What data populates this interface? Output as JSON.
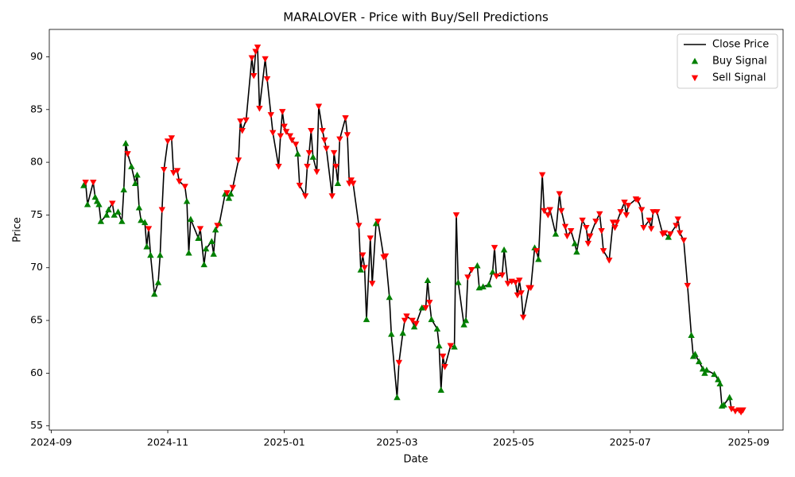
{
  "chart_data": {
    "type": "line",
    "title": "MARALOVER - Price with Buy/Sell Predictions",
    "x_label": "Date",
    "y_label": "Price",
    "xlim": [
      "2024-08-31",
      "2025-09-19"
    ],
    "ylim": [
      54.6,
      92.6
    ],
    "xticks": [
      {
        "value": "2024-09-01",
        "label": "2024-09"
      },
      {
        "value": "2024-11-01",
        "label": "2024-11"
      },
      {
        "value": "2025-01-01",
        "label": "2025-01"
      },
      {
        "value": "2025-03-01",
        "label": "2025-03"
      },
      {
        "value": "2025-05-01",
        "label": "2025-05"
      },
      {
        "value": "2025-07-01",
        "label": "2025-07"
      },
      {
        "value": "2025-09-01",
        "label": "2025-09"
      }
    ],
    "yticks": [
      55,
      60,
      65,
      70,
      75,
      80,
      85,
      90
    ],
    "legend": "upper right",
    "series": [
      {
        "name": "Close Price",
        "type": "line",
        "color": "#000000",
        "x": [
          "2024-09-18",
          "2024-09-19",
          "2024-09-20",
          "2024-09-23",
          "2024-09-24",
          "2024-09-25",
          "2024-09-26",
          "2024-09-27",
          "2024-09-30",
          "2024-10-01",
          "2024-10-03",
          "2024-10-04",
          "2024-10-06",
          "2024-10-08",
          "2024-10-09",
          "2024-10-10",
          "2024-10-11",
          "2024-10-13",
          "2024-10-15",
          "2024-10-16",
          "2024-10-17",
          "2024-10-18",
          "2024-10-20",
          "2024-10-21",
          "2024-10-22",
          "2024-10-23",
          "2024-10-25",
          "2024-10-27",
          "2024-10-28",
          "2024-10-29",
          "2024-10-30",
          "2024-11-01",
          "2024-11-03",
          "2024-11-04",
          "2024-11-06",
          "2024-11-07",
          "2024-11-10",
          "2024-11-11",
          "2024-11-12",
          "2024-11-13",
          "2024-11-17",
          "2024-11-18",
          "2024-11-20",
          "2024-11-21",
          "2024-11-24",
          "2024-11-25",
          "2024-11-26",
          "2024-11-27",
          "2024-11-28",
          "2024-12-01",
          "2024-12-02",
          "2024-12-03",
          "2024-12-04",
          "2024-12-05",
          "2024-12-08",
          "2024-12-09",
          "2024-12-10",
          "2024-12-12",
          "2024-12-15",
          "2024-12-16",
          "2024-12-17",
          "2024-12-18",
          "2024-12-19",
          "2024-12-22",
          "2024-12-23",
          "2024-12-25",
          "2024-12-26",
          "2024-12-29",
          "2024-12-30",
          "2024-12-31",
          "2025-01-01",
          "2025-01-02",
          "2025-01-04",
          "2025-01-05",
          "2025-01-07",
          "2025-01-08",
          "2025-01-09",
          "2025-01-12",
          "2025-01-13",
          "2025-01-14",
          "2025-01-15",
          "2025-01-16",
          "2025-01-18",
          "2025-01-19",
          "2025-01-21",
          "2025-01-22",
          "2025-01-23",
          "2025-01-26",
          "2025-01-27",
          "2025-01-28",
          "2025-01-29",
          "2025-01-30",
          "2025-02-02",
          "2025-02-03",
          "2025-02-04",
          "2025-02-05",
          "2025-02-06",
          "2025-02-09",
          "2025-02-10",
          "2025-02-11",
          "2025-02-12",
          "2025-02-13",
          "2025-02-15",
          "2025-02-16",
          "2025-02-18",
          "2025-02-19",
          "2025-02-22",
          "2025-02-23",
          "2025-02-25",
          "2025-02-26",
          "2025-03-01",
          "2025-03-02",
          "2025-03-04",
          "2025-03-05",
          "2025-03-06",
          "2025-03-09",
          "2025-03-10",
          "2025-03-11",
          "2025-03-14",
          "2025-03-16",
          "2025-03-17",
          "2025-03-18",
          "2025-03-19",
          "2025-03-22",
          "2025-03-23",
          "2025-03-24",
          "2025-03-25",
          "2025-03-26",
          "2025-03-29",
          "2025-03-31",
          "2025-04-01",
          "2025-04-02",
          "2025-04-05",
          "2025-04-06",
          "2025-04-07",
          "2025-04-09",
          "2025-04-12",
          "2025-04-13",
          "2025-04-15",
          "2025-04-18",
          "2025-04-20",
          "2025-04-21",
          "2025-04-22",
          "2025-04-25",
          "2025-04-26",
          "2025-04-28",
          "2025-04-30",
          "2025-05-02",
          "2025-05-03",
          "2025-05-04",
          "2025-05-05",
          "2025-05-06",
          "2025-05-09",
          "2025-05-10",
          "2025-05-12",
          "2025-05-13",
          "2025-05-14",
          "2025-05-16",
          "2025-05-17",
          "2025-05-19",
          "2025-05-20",
          "2025-05-23",
          "2025-05-25",
          "2025-05-26",
          "2025-05-28",
          "2025-05-29",
          "2025-05-31",
          "2025-06-02",
          "2025-06-03",
          "2025-06-06",
          "2025-06-08",
          "2025-06-09",
          "2025-06-10",
          "2025-06-13",
          "2025-06-15",
          "2025-06-16",
          "2025-06-17",
          "2025-06-20",
          "2025-06-22",
          "2025-06-23",
          "2025-06-24",
          "2025-06-26",
          "2025-06-28",
          "2025-06-29",
          "2025-06-30",
          "2025-07-04",
          "2025-07-05",
          "2025-07-07",
          "2025-07-08",
          "2025-07-11",
          "2025-07-12",
          "2025-07-13",
          "2025-07-15",
          "2025-07-18",
          "2025-07-19",
          "2025-07-21",
          "2025-07-22",
          "2025-07-25",
          "2025-07-26",
          "2025-07-27",
          "2025-07-29",
          "2025-07-31",
          "2025-08-02",
          "2025-08-03",
          "2025-08-04",
          "2025-08-06",
          "2025-08-08",
          "2025-08-09",
          "2025-08-10",
          "2025-08-14",
          "2025-08-16",
          "2025-08-17",
          "2025-08-18",
          "2025-08-19",
          "2025-08-22",
          "2025-08-23",
          "2025-08-25",
          "2025-08-27",
          "2025-08-28",
          "2025-08-29"
        ],
        "values": [
          77.8,
          78.1,
          76.0,
          78.1,
          76.7,
          76.3,
          76.0,
          74.4,
          75.0,
          75.5,
          76.1,
          75.0,
          75.3,
          74.4,
          77.4,
          81.8,
          80.8,
          79.6,
          78.0,
          78.8,
          75.7,
          74.5,
          74.3,
          72.0,
          73.7,
          71.2,
          67.5,
          68.6,
          71.2,
          75.5,
          79.3,
          82.0,
          82.3,
          79.0,
          79.2,
          78.2,
          77.7,
          76.3,
          71.4,
          74.6,
          72.8,
          73.7,
          70.3,
          71.8,
          72.5,
          71.3,
          73.6,
          74.0,
          74.2,
          77.0,
          77.1,
          76.6,
          77.0,
          77.6,
          80.2,
          83.9,
          83.0,
          84.0,
          89.9,
          88.2,
          90.5,
          90.9,
          85.1,
          89.8,
          87.9,
          84.5,
          82.8,
          79.6,
          82.5,
          84.8,
          83.4,
          82.9,
          82.5,
          82.1,
          81.7,
          80.8,
          77.8,
          76.8,
          79.6,
          80.9,
          83.0,
          80.5,
          79.1,
          85.3,
          83.0,
          82.1,
          81.3,
          76.8,
          80.9,
          79.6,
          78.0,
          82.2,
          84.2,
          82.6,
          78.0,
          78.3,
          78.0,
          74.0,
          69.8,
          71.2,
          70.0,
          65.1,
          72.8,
          68.5,
          74.2,
          74.4,
          71.0,
          71.1,
          67.2,
          63.7,
          57.7,
          61.0,
          63.8,
          65.0,
          65.4,
          65.0,
          64.4,
          64.7,
          66.2,
          66.2,
          68.8,
          66.7,
          65.1,
          64.2,
          62.6,
          58.4,
          61.6,
          60.6,
          62.6,
          62.5,
          75.0,
          68.6,
          64.6,
          65.0,
          69.1,
          69.8,
          70.2,
          68.1,
          68.2,
          68.4,
          69.6,
          71.9,
          69.2,
          69.3,
          71.7,
          68.5,
          68.7,
          68.6,
          67.4,
          68.8,
          67.6,
          65.3,
          68.1,
          68.1,
          71.9,
          71.6,
          70.8,
          78.8,
          75.4,
          75.0,
          75.5,
          73.2,
          77.0,
          75.4,
          73.9,
          73.0,
          73.5,
          72.3,
          71.5,
          74.5,
          73.8,
          72.3,
          73.0,
          74.4,
          75.1,
          73.5,
          71.6,
          70.7,
          74.3,
          73.8,
          74.3,
          75.3,
          76.2,
          75.0,
          75.9,
          76.5,
          76.4,
          75.5,
          73.8,
          74.5,
          73.7,
          75.3,
          75.3,
          73.2,
          73.3,
          72.9,
          73.2,
          74.0,
          74.6,
          73.3,
          72.6,
          68.3,
          63.6,
          61.6,
          61.8,
          61.1,
          60.4,
          60.0,
          60.3,
          59.9,
          59.4,
          59.0,
          56.9,
          57.0,
          57.7,
          56.6,
          56.4,
          56.5,
          56.3,
          56.5
        ]
      },
      {
        "name": "Buy Signal",
        "type": "scatter",
        "marker": "triangle-up",
        "color": "#008000",
        "x": [
          "2024-09-18",
          "2024-09-20",
          "2024-09-24",
          "2024-09-25",
          "2024-09-26",
          "2024-09-27",
          "2024-09-30",
          "2024-10-01",
          "2024-10-04",
          "2024-10-06",
          "2024-10-08",
          "2024-10-09",
          "2024-10-10",
          "2024-10-13",
          "2024-10-15",
          "2024-10-16",
          "2024-10-17",
          "2024-10-18",
          "2024-10-20",
          "2024-10-21",
          "2024-10-23",
          "2024-10-25",
          "2024-10-27",
          "2024-10-28",
          "2024-11-11",
          "2024-11-12",
          "2024-11-13",
          "2024-11-17",
          "2024-11-20",
          "2024-11-21",
          "2024-11-24",
          "2024-11-25",
          "2024-11-26",
          "2024-11-28",
          "2024-12-01",
          "2024-12-03",
          "2024-12-04",
          "2025-01-08",
          "2025-01-16",
          "2025-01-29",
          "2025-02-10",
          "2025-02-13",
          "2025-02-18",
          "2025-02-25",
          "2025-02-26",
          "2025-03-01",
          "2025-03-04",
          "2025-03-10",
          "2025-03-14",
          "2025-03-17",
          "2025-03-19",
          "2025-03-22",
          "2025-03-23",
          "2025-03-24",
          "2025-03-31",
          "2025-04-02",
          "2025-04-05",
          "2025-04-06",
          "2025-04-12",
          "2025-04-13",
          "2025-04-15",
          "2025-04-18",
          "2025-04-20",
          "2025-04-26",
          "2025-05-12",
          "2025-05-14",
          "2025-05-23",
          "2025-06-02",
          "2025-06-03",
          "2025-07-21",
          "2025-08-02",
          "2025-08-03",
          "2025-08-04",
          "2025-08-06",
          "2025-08-08",
          "2025-08-09",
          "2025-08-10",
          "2025-08-14",
          "2025-08-16",
          "2025-08-17",
          "2025-08-18",
          "2025-08-19",
          "2025-08-22"
        ],
        "values": [
          77.8,
          76.0,
          76.7,
          76.3,
          76.0,
          74.4,
          75.0,
          75.5,
          75.0,
          75.3,
          74.4,
          77.4,
          81.8,
          79.6,
          78.0,
          78.8,
          75.7,
          74.5,
          74.3,
          72.0,
          71.2,
          67.5,
          68.6,
          71.2,
          76.3,
          71.4,
          74.6,
          72.8,
          70.3,
          71.8,
          72.5,
          71.3,
          73.6,
          74.2,
          77.0,
          76.6,
          77.0,
          80.8,
          80.5,
          78.0,
          69.8,
          65.1,
          74.2,
          67.2,
          63.7,
          57.7,
          63.8,
          64.4,
          66.2,
          68.8,
          65.1,
          64.2,
          62.6,
          58.4,
          62.5,
          68.6,
          64.6,
          65.0,
          70.2,
          68.1,
          68.2,
          68.4,
          69.6,
          71.7,
          71.9,
          70.8,
          73.2,
          72.3,
          71.5,
          72.9,
          63.6,
          61.6,
          61.8,
          61.1,
          60.4,
          60.0,
          60.3,
          59.9,
          59.4,
          59.0,
          56.9,
          57.0,
          57.7
        ]
      },
      {
        "name": "Sell Signal",
        "type": "scatter",
        "marker": "triangle-down",
        "color": "#ff0000",
        "x": [
          "2024-09-19",
          "2024-09-23",
          "2024-10-03",
          "2024-10-11",
          "2024-10-22",
          "2024-10-29",
          "2024-10-30",
          "2024-11-01",
          "2024-11-03",
          "2024-11-04",
          "2024-11-06",
          "2024-11-07",
          "2024-11-10",
          "2024-11-18",
          "2024-11-27",
          "2024-12-02",
          "2024-12-05",
          "2024-12-08",
          "2024-12-09",
          "2024-12-10",
          "2024-12-12",
          "2024-12-15",
          "2024-12-16",
          "2024-12-17",
          "2024-12-18",
          "2024-12-19",
          "2024-12-22",
          "2024-12-23",
          "2024-12-25",
          "2024-12-26",
          "2024-12-29",
          "2024-12-30",
          "2024-12-31",
          "2025-01-01",
          "2025-01-02",
          "2025-01-04",
          "2025-01-05",
          "2025-01-07",
          "2025-01-09",
          "2025-01-12",
          "2025-01-13",
          "2025-01-14",
          "2025-01-15",
          "2025-01-18",
          "2025-01-19",
          "2025-01-21",
          "2025-01-22",
          "2025-01-23",
          "2025-01-26",
          "2025-01-27",
          "2025-01-28",
          "2025-01-30",
          "2025-02-02",
          "2025-02-03",
          "2025-02-04",
          "2025-02-05",
          "2025-02-06",
          "2025-02-09",
          "2025-02-11",
          "2025-02-12",
          "2025-02-15",
          "2025-02-16",
          "2025-02-19",
          "2025-02-22",
          "2025-02-23",
          "2025-03-02",
          "2025-03-05",
          "2025-03-06",
          "2025-03-09",
          "2025-03-11",
          "2025-03-16",
          "2025-03-18",
          "2025-03-25",
          "2025-03-26",
          "2025-03-29",
          "2025-04-01",
          "2025-04-07",
          "2025-04-09",
          "2025-04-21",
          "2025-04-22",
          "2025-04-25",
          "2025-04-28",
          "2025-04-30",
          "2025-05-02",
          "2025-05-03",
          "2025-05-04",
          "2025-05-05",
          "2025-05-06",
          "2025-05-09",
          "2025-05-10",
          "2025-05-13",
          "2025-05-16",
          "2025-05-17",
          "2025-05-19",
          "2025-05-20",
          "2025-05-25",
          "2025-05-26",
          "2025-05-28",
          "2025-05-29",
          "2025-05-31",
          "2025-06-06",
          "2025-06-08",
          "2025-06-09",
          "2025-06-10",
          "2025-06-13",
          "2025-06-15",
          "2025-06-16",
          "2025-06-17",
          "2025-06-20",
          "2025-06-22",
          "2025-06-23",
          "2025-06-24",
          "2025-06-26",
          "2025-06-28",
          "2025-06-29",
          "2025-06-30",
          "2025-07-04",
          "2025-07-05",
          "2025-07-07",
          "2025-07-08",
          "2025-07-11",
          "2025-07-12",
          "2025-07-13",
          "2025-07-15",
          "2025-07-18",
          "2025-07-19",
          "2025-07-22",
          "2025-07-25",
          "2025-07-26",
          "2025-07-27",
          "2025-07-29",
          "2025-07-31",
          "2025-08-23",
          "2025-08-25",
          "2025-08-27",
          "2025-08-28",
          "2025-08-29"
        ],
        "values": [
          78.1,
          78.1,
          76.1,
          80.8,
          73.7,
          75.5,
          79.3,
          82.0,
          82.3,
          79.0,
          79.2,
          78.2,
          77.7,
          73.7,
          74.0,
          77.1,
          77.6,
          80.2,
          83.9,
          83.0,
          84.0,
          89.9,
          88.2,
          90.5,
          90.9,
          85.1,
          89.8,
          87.9,
          84.5,
          82.8,
          79.6,
          82.5,
          84.8,
          83.4,
          82.9,
          82.5,
          82.1,
          81.7,
          77.8,
          76.8,
          79.6,
          80.9,
          83.0,
          79.1,
          85.3,
          83.0,
          82.1,
          81.3,
          76.8,
          80.9,
          79.6,
          82.2,
          84.2,
          82.6,
          78.0,
          78.3,
          78.0,
          74.0,
          71.2,
          70.0,
          72.8,
          68.5,
          74.4,
          71.0,
          71.1,
          61.0,
          65.0,
          65.4,
          65.0,
          64.7,
          66.2,
          66.7,
          61.6,
          60.6,
          62.6,
          75.0,
          69.1,
          69.8,
          71.9,
          69.2,
          69.3,
          68.5,
          68.7,
          68.6,
          67.4,
          68.8,
          67.6,
          65.3,
          68.1,
          68.1,
          71.6,
          78.8,
          75.4,
          75.0,
          75.5,
          77.0,
          75.4,
          73.9,
          73.0,
          73.5,
          74.5,
          73.8,
          72.3,
          73.0,
          74.4,
          75.1,
          73.5,
          71.6,
          70.7,
          74.3,
          73.8,
          74.3,
          75.3,
          76.2,
          75.0,
          75.9,
          76.5,
          76.4,
          75.5,
          73.8,
          74.5,
          73.7,
          75.3,
          75.3,
          73.2,
          73.3,
          73.2,
          74.0,
          74.6,
          73.3,
          72.6,
          68.3,
          56.6,
          56.4,
          56.5,
          56.3,
          56.5
        ]
      }
    ]
  }
}
